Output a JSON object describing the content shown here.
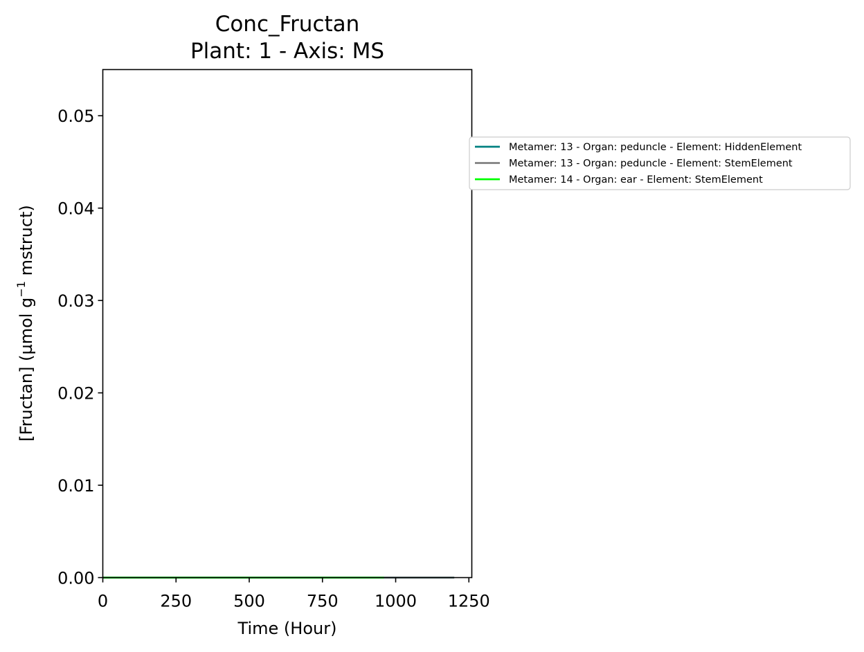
{
  "chart_data": {
    "type": "line",
    "title": "Conc_Fructan",
    "subtitle": "Plant: 1 - Axis: MS",
    "xlabel": "Time (Hour)",
    "ylabel": "[Fructan] (µmol g",
    "ylabel_superscript": "−1",
    "ylabel_suffix": " mstruct)",
    "xlim": [
      0,
      1260
    ],
    "ylim": [
      0,
      0.055
    ],
    "xticks": [
      0,
      250,
      500,
      750,
      1000,
      1250
    ],
    "xtick_labels": [
      "0",
      "250",
      "500",
      "750",
      "1000",
      "1250"
    ],
    "yticks": [
      0,
      0.01,
      0.02,
      0.03,
      0.04,
      0.05
    ],
    "ytick_labels": [
      "0.00",
      "0.01",
      "0.02",
      "0.03",
      "0.04",
      "0.05"
    ],
    "grid": false,
    "legend_position": "outside-right",
    "series": [
      {
        "name": "Metamer: 13 - Organ: peduncle - Element: HiddenElement",
        "color": "#008080",
        "x": [
          0,
          1200
        ],
        "y": [
          0,
          0
        ]
      },
      {
        "name": "Metamer: 13 - Organ: peduncle - Element: StemElement",
        "color": "#808080",
        "x": [
          0,
          1200
        ],
        "y": [
          0,
          0
        ]
      },
      {
        "name": "Metamer: 14 - Organ: ear - Element: StemElement",
        "color": "#00ff00",
        "x": [
          0,
          960
        ],
        "y": [
          0,
          0
        ]
      }
    ]
  }
}
